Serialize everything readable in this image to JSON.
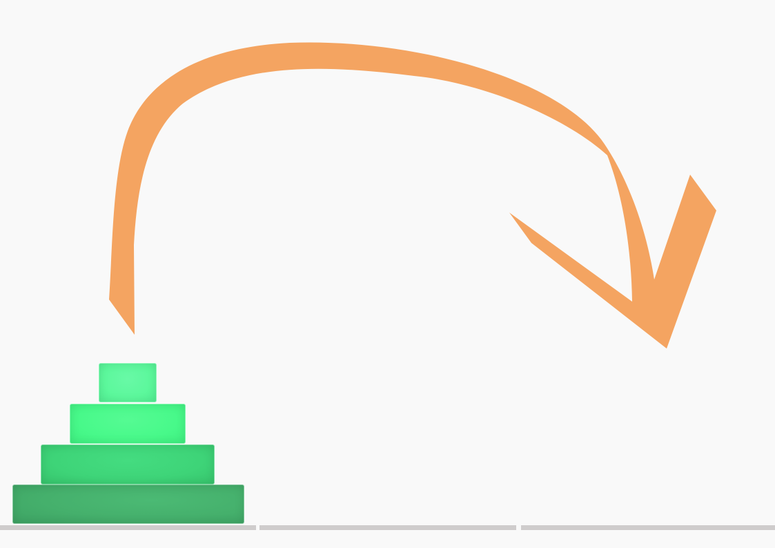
{
  "colors": {
    "background": "#f9f9f9",
    "arrow": "#f4a461",
    "peg_base": "#cfcccc"
  },
  "pegs": [
    {
      "id": "peg-1",
      "disks": [
        "disk-1",
        "disk-2",
        "disk-3",
        "disk-4"
      ]
    },
    {
      "id": "peg-2",
      "disks": []
    },
    {
      "id": "peg-3",
      "disks": []
    }
  ],
  "disks": [
    {
      "id": "disk-1",
      "size": 1,
      "color": "#5cf89c"
    },
    {
      "id": "disk-2",
      "size": 2,
      "color": "#48f98a"
    },
    {
      "id": "disk-3",
      "size": 3,
      "color": "#3ed478"
    },
    {
      "id": "disk-4",
      "size": 4,
      "color": "#45b06c"
    }
  ],
  "move_hint": {
    "from_peg": 1,
    "to_peg": 3,
    "icon": "curved-arrow-icon"
  }
}
